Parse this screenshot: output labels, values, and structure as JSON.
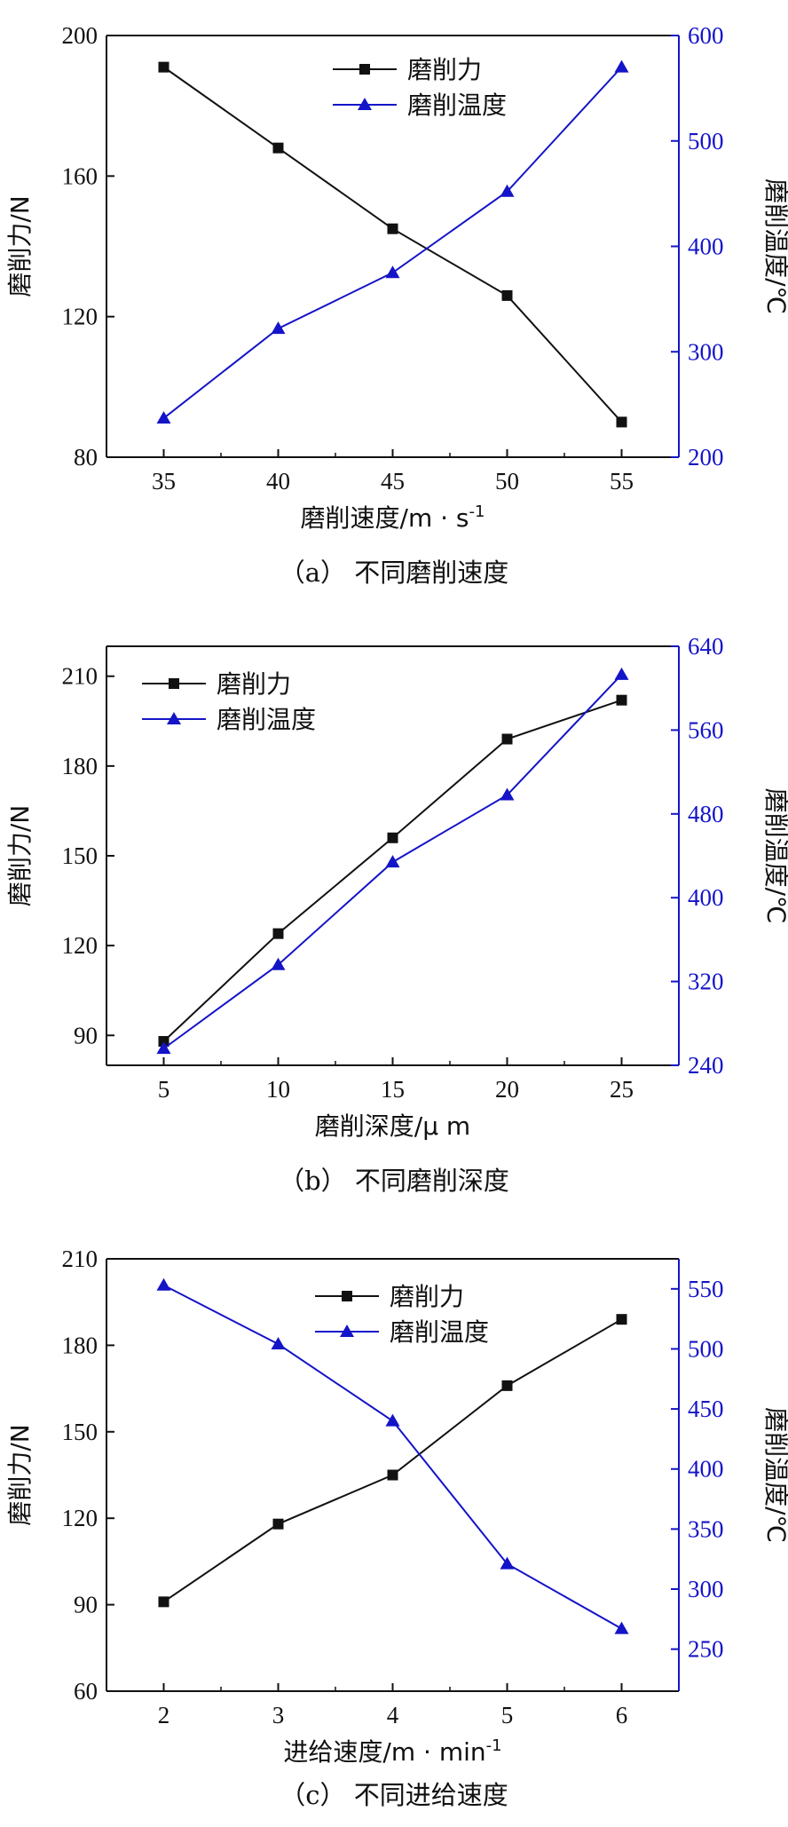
{
  "colors": {
    "force": "#111111",
    "temperature": "#1414c8",
    "axis": "#111111"
  },
  "chart_data": [
    {
      "type": "line",
      "caption": "（a） 不同磨削速度",
      "xlabel": "磨削速度/m · s",
      "xlabel_sup": "-1",
      "ylabel": "磨削力/N",
      "y2label": "磨削温度/℃",
      "x": [
        35,
        40,
        45,
        50,
        55
      ],
      "xlim": [
        32.5,
        57.5
      ],
      "ylim": [
        80,
        200
      ],
      "yticks": [
        80,
        120,
        160,
        200
      ],
      "y2lim": [
        200,
        600
      ],
      "y2ticks": [
        200,
        300,
        400,
        500,
        600
      ],
      "legend_position": "top-center",
      "series": [
        {
          "name": "磨削力",
          "axis": "left",
          "marker": "square",
          "values": [
            191,
            168,
            145,
            126,
            90
          ]
        },
        {
          "name": "磨削温度",
          "axis": "right",
          "marker": "triangle",
          "values": [
            237,
            322,
            375,
            452,
            570
          ]
        }
      ]
    },
    {
      "type": "line",
      "caption": "（b） 不同磨削深度",
      "xlabel": "磨削深度/μ m",
      "xlabel_sup": "",
      "ylabel": "磨削力/N",
      "y2label": "磨削温度/℃",
      "x": [
        5,
        10,
        15,
        20,
        25
      ],
      "xlim": [
        2.5,
        27.5
      ],
      "ylim": [
        80,
        220
      ],
      "yticks": [
        90,
        120,
        150,
        180,
        210
      ],
      "y2lim": [
        240,
        640
      ],
      "y2ticks": [
        240,
        320,
        400,
        480,
        560,
        640
      ],
      "legend_position": "top-left",
      "series": [
        {
          "name": "磨削力",
          "axis": "left",
          "marker": "square",
          "values": [
            88,
            124,
            156,
            189,
            202
          ]
        },
        {
          "name": "磨削温度",
          "axis": "right",
          "marker": "triangle",
          "values": [
            256,
            336,
            434,
            498,
            613
          ]
        }
      ]
    },
    {
      "type": "line",
      "caption": "（c） 不同进给速度",
      "xlabel": "进给速度/m · min",
      "xlabel_sup": "-1",
      "ylabel": "磨削力/N",
      "y2label": "磨削温度/℃",
      "x": [
        2,
        3,
        4,
        5,
        6
      ],
      "xlim": [
        1.5,
        6.5
      ],
      "ylim": [
        60,
        210
      ],
      "yticks": [
        60,
        90,
        120,
        150,
        180,
        210
      ],
      "y2lim": [
        215,
        575
      ],
      "y2ticks": [
        250,
        300,
        350,
        400,
        450,
        500,
        550
      ],
      "legend_position": "top-center",
      "series": [
        {
          "name": "磨削力",
          "axis": "left",
          "marker": "square",
          "values": [
            91,
            118,
            135,
            166,
            189
          ]
        },
        {
          "name": "磨削温度",
          "axis": "right",
          "marker": "triangle",
          "values": [
            553,
            504,
            440,
            321,
            267
          ]
        }
      ]
    }
  ]
}
